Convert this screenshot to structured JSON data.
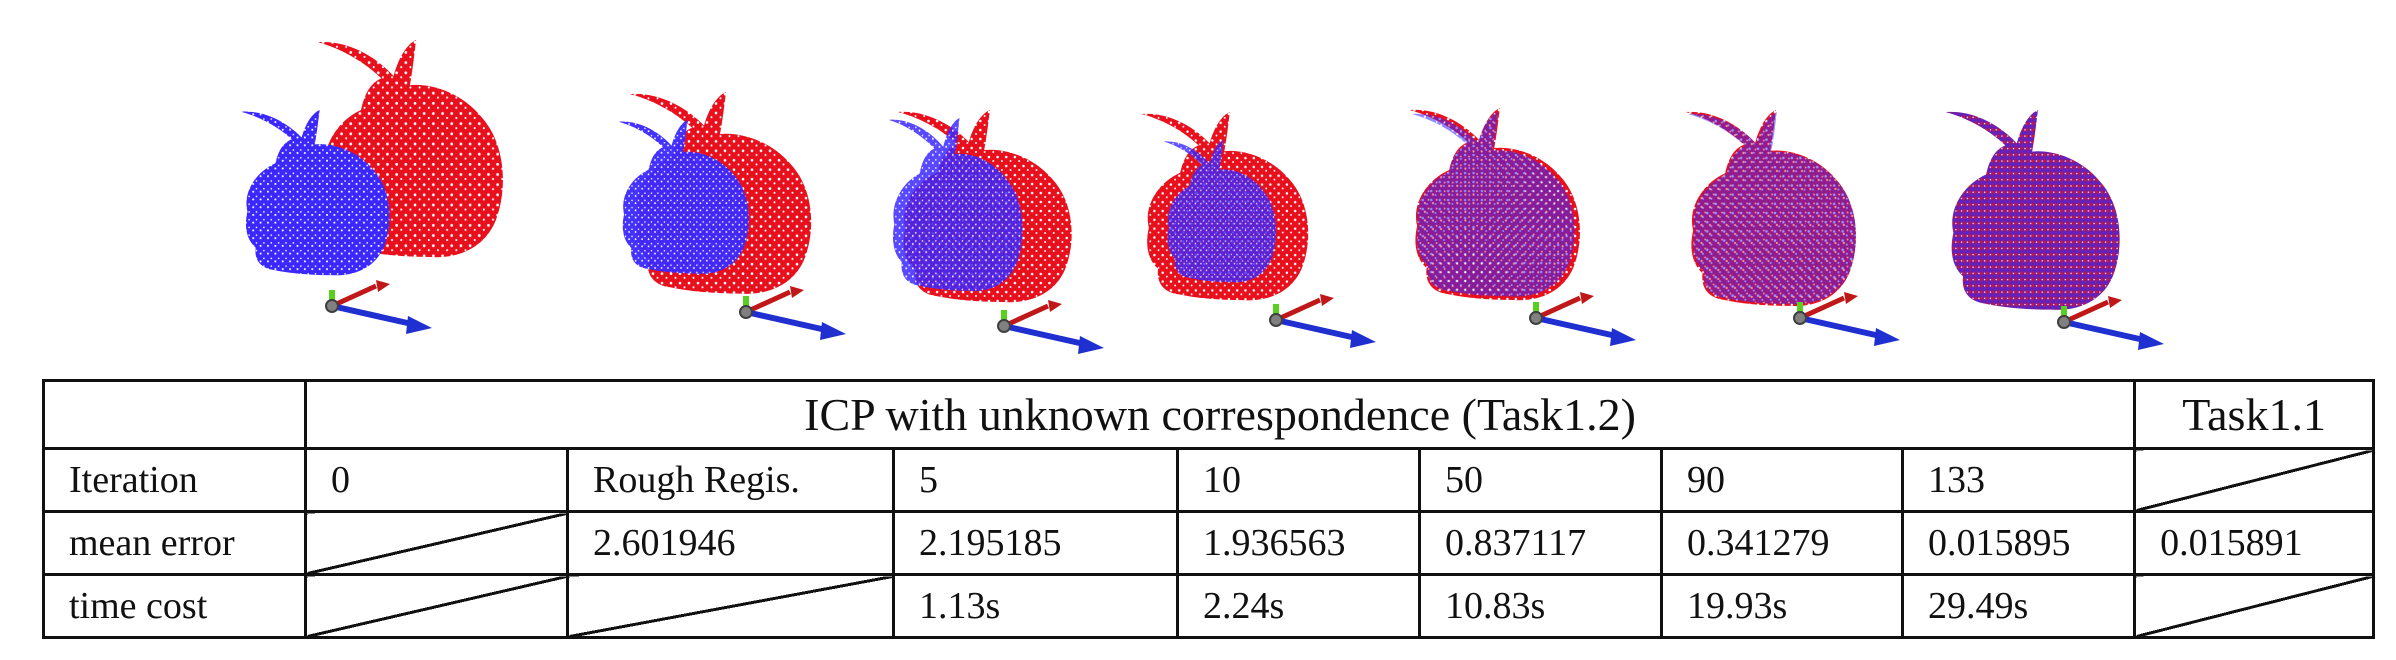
{
  "table": {
    "header_main": "ICP with unknown correspondence (Task1.2)",
    "header_side": "Task1.1",
    "rows": [
      {
        "label": "Iteration",
        "cells": [
          "0",
          "Rough Regis.",
          "5",
          "10",
          "50",
          "90",
          "133",
          ""
        ]
      },
      {
        "label": "mean error",
        "cells": [
          "",
          "2.601946",
          "2.195185",
          "1.936563",
          "0.837117",
          "0.341279",
          "0.015895",
          "0.015891"
        ]
      },
      {
        "label": "time cost",
        "cells": [
          "",
          "",
          "1.13s",
          "2.24s",
          "10.83s",
          "19.93s",
          "29.49s",
          ""
        ]
      }
    ]
  },
  "colors": {
    "source_cloud": "#e8101c",
    "target_cloud": "#3a28ff",
    "axis_x": "#1f2fd0",
    "axis_y": "#c01818",
    "axis_z": "#58d020"
  }
}
